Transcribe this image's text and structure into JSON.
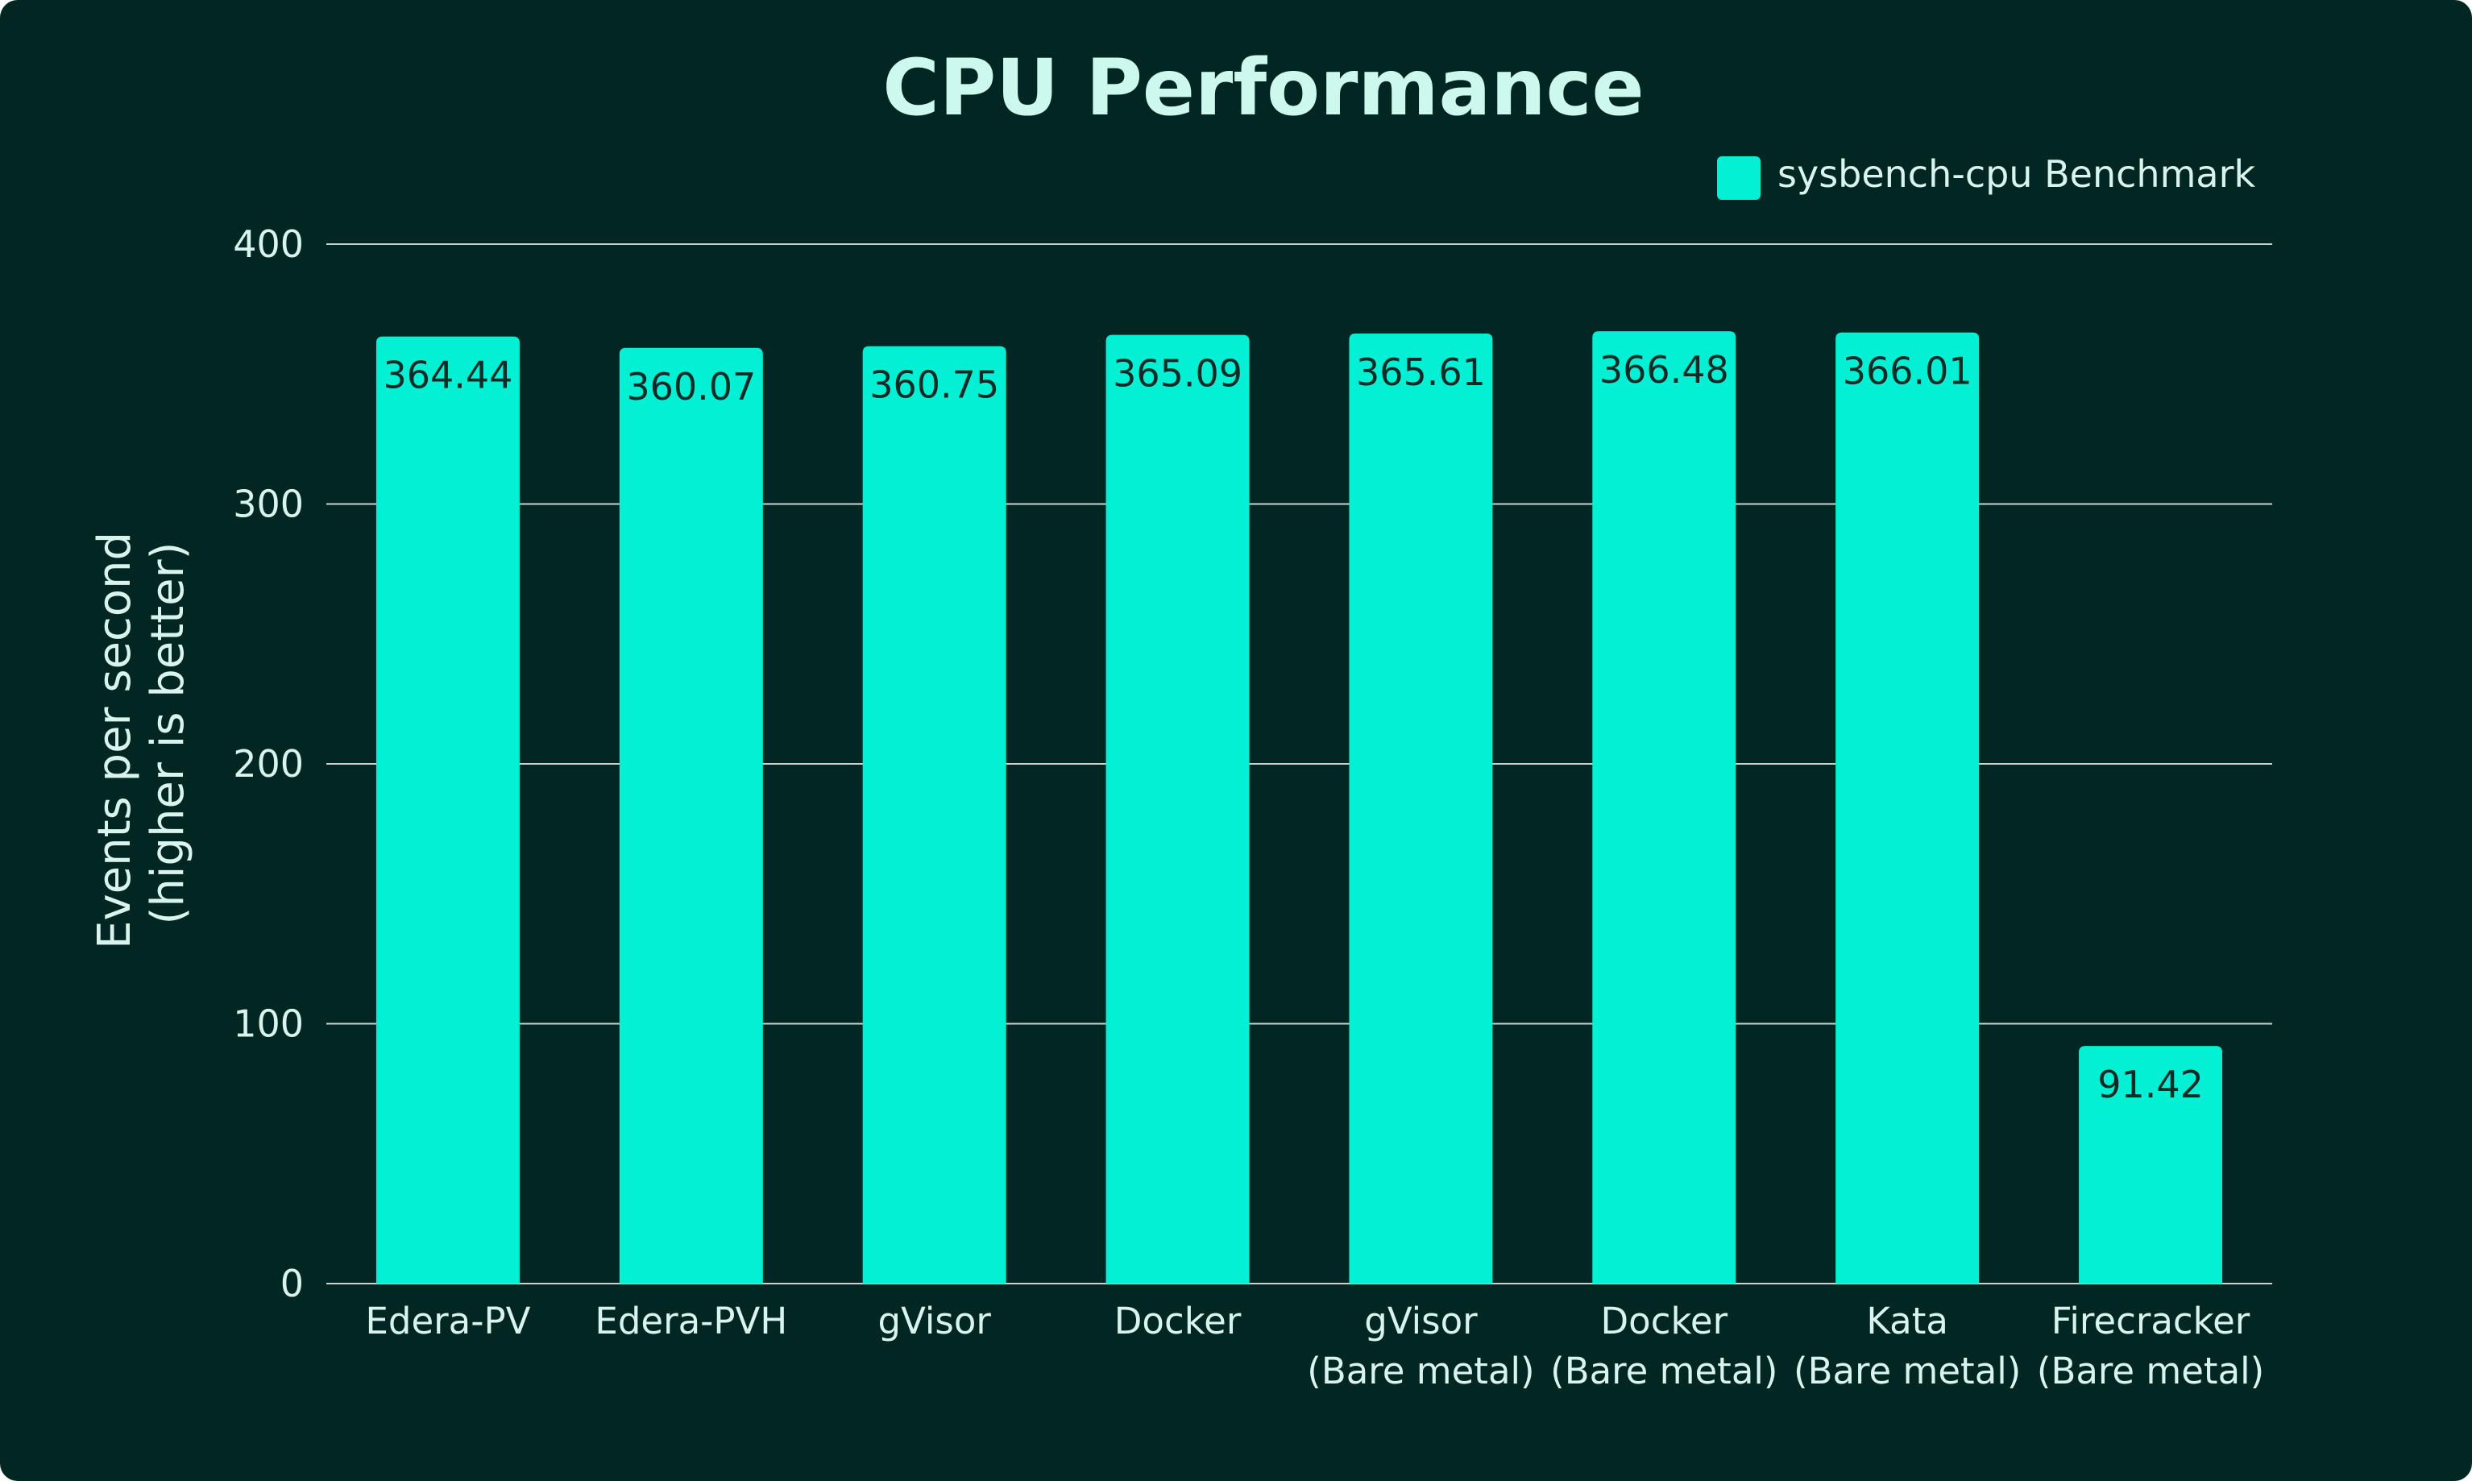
{
  "chart_data": {
    "type": "bar",
    "title": "CPU Performance",
    "xlabel": "",
    "ylabel_lines": [
      "Events per second",
      "(higher is better)"
    ],
    "ylim": [
      0,
      400
    ],
    "yticks": [
      0,
      100,
      200,
      300,
      400
    ],
    "grid": true,
    "legend_position": "top-right",
    "categories": [
      [
        "Edera-PV"
      ],
      [
        "Edera-PVH"
      ],
      [
        "gVisor"
      ],
      [
        "Docker"
      ],
      [
        "gVisor",
        "(Bare metal)"
      ],
      [
        "Docker",
        "(Bare metal)"
      ],
      [
        "Kata",
        "(Bare metal)"
      ],
      [
        "Firecracker",
        "(Bare metal)"
      ]
    ],
    "series": [
      {
        "name": "sysbench-cpu Benchmark",
        "color": "#03F0D5",
        "values": [
          364.44,
          360.07,
          360.75,
          365.09,
          365.61,
          366.48,
          366.01,
          91.42
        ],
        "labels": [
          "364.44",
          "360.07",
          "360.75",
          "365.09",
          "365.61",
          "366.48",
          "366.01",
          "91.42"
        ]
      }
    ]
  },
  "colors": {
    "background": "#022722",
    "bar": "#03F0D5",
    "grid": "#c9d4d1",
    "text": "#d9f3ee",
    "title": "#cdf8ee",
    "data_label": "#0b2b26"
  }
}
